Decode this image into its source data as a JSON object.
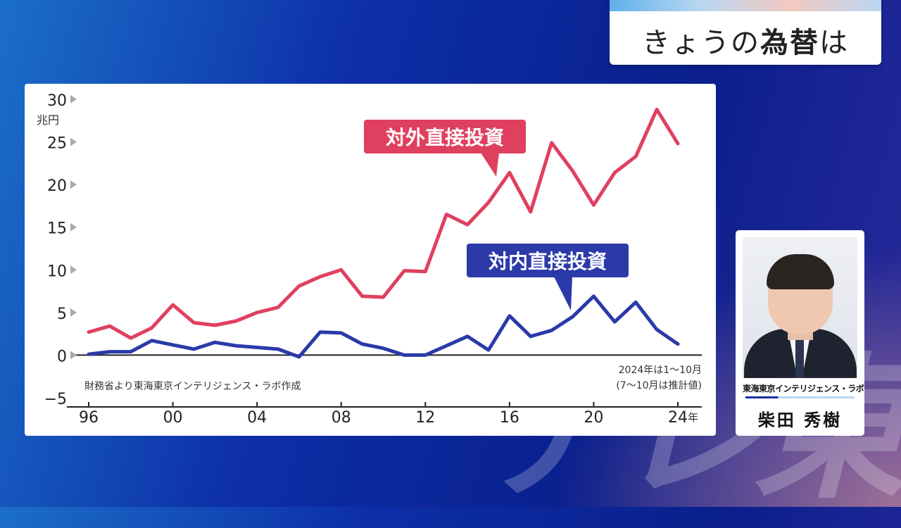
{
  "header": {
    "title_prefix": "きょうの",
    "title_bold": "為替",
    "title_suffix": "は"
  },
  "chart_data": {
    "type": "line",
    "ylabel": "兆円",
    "xlabel": "年",
    "ylim": [
      -5,
      30
    ],
    "yticks": [
      30,
      25,
      20,
      15,
      10,
      5,
      0,
      -5
    ],
    "ytick_labels": [
      "30",
      "25",
      "20",
      "15",
      "10",
      "5",
      "0",
      "−5"
    ],
    "xticks": [
      1996,
      2000,
      2004,
      2008,
      2012,
      2016,
      2020,
      2024
    ],
    "xtick_labels": [
      "96",
      "00",
      "04",
      "08",
      "12",
      "16",
      "20",
      "24"
    ],
    "x": [
      1996,
      1997,
      1998,
      1999,
      2000,
      2001,
      2002,
      2003,
      2004,
      2005,
      2006,
      2007,
      2008,
      2009,
      2010,
      2011,
      2012,
      2013,
      2014,
      2015,
      2016,
      2017,
      2018,
      2019,
      2020,
      2021,
      2022,
      2023,
      2024
    ],
    "series": [
      {
        "name": "対外直接投資",
        "color": "#e0405f",
        "values": [
          2.7,
          3.4,
          2.0,
          3.2,
          5.9,
          3.8,
          3.5,
          4.0,
          5.0,
          5.6,
          8.1,
          9.2,
          10.0,
          6.9,
          6.8,
          9.9,
          9.8,
          16.5,
          15.3,
          17.9,
          21.4,
          16.8,
          24.9,
          21.6,
          17.6,
          21.4,
          23.3,
          28.8,
          24.8
        ]
      },
      {
        "name": "対内直接投資",
        "color": "#2b3aa8",
        "values": [
          0.1,
          0.4,
          0.4,
          1.7,
          1.2,
          0.7,
          1.5,
          1.1,
          0.9,
          0.7,
          -0.2,
          2.7,
          2.6,
          1.3,
          0.8,
          0.0,
          0.0,
          1.1,
          2.2,
          0.6,
          4.6,
          2.2,
          2.9,
          4.5,
          6.9,
          3.9,
          6.2,
          3.0,
          1.3
        ]
      }
    ],
    "source_note": "財務省より東海東京インテリジェンス・ラボ作成",
    "footnote_1": "2024年は1〜10月",
    "footnote_2": "(7〜10月は推計値)"
  },
  "profile": {
    "org": "東海東京インテリジェンス・ラボ",
    "name": "柴田 秀樹"
  },
  "watermark": "テレ東"
}
